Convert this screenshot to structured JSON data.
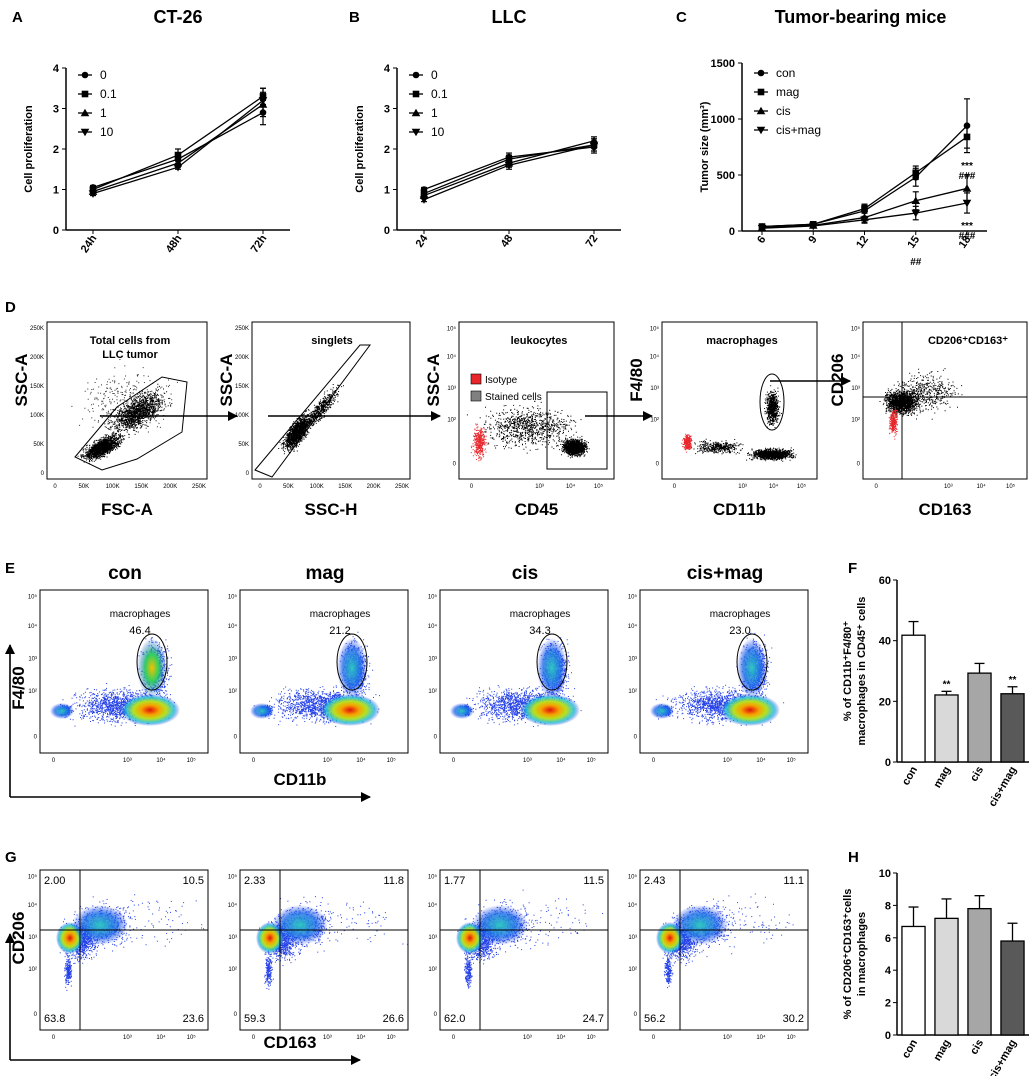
{
  "panels": {
    "A": "A",
    "B": "B",
    "C": "C",
    "D": "D",
    "E": "E",
    "F": "F",
    "G": "G",
    "H": "H"
  },
  "panel_d": {
    "plots": [
      {
        "title": "Total cells from",
        "title2": "LLC tumor",
        "xlabel": "FSC-A",
        "ylabel": "SSC-A"
      },
      {
        "title": "singlets",
        "xlabel": "SSC-H",
        "ylabel": "SSC-A"
      },
      {
        "title": "leukocytes",
        "xlabel": "CD45",
        "ylabel": "SSC-A"
      },
      {
        "title": "macrophages",
        "xlabel": "CD11b",
        "ylabel": "F4/80"
      },
      {
        "title": "CD206⁺CD163⁺",
        "xlabel": "CD163",
        "ylabel": "CD206"
      }
    ],
    "legend": {
      "isotype": "Isotype",
      "stained": "Stained cells",
      "isotype_color": "#e8262c",
      "stained_color": "#808080"
    },
    "linear_ticks": [
      "0",
      "50K",
      "100K",
      "150K",
      "200K",
      "250K"
    ],
    "log_ticks": [
      "0",
      "10³",
      "10⁴",
      "10⁵"
    ]
  },
  "panel_e": {
    "conditions": [
      "con",
      "mag",
      "cis",
      "cis+mag"
    ],
    "gate_label": "macrophages",
    "percents": [
      "46.4",
      "21.2",
      "34.3",
      "23.0"
    ],
    "xlabel": "CD11b",
    "ylabel": "F4/80"
  },
  "panel_g": {
    "quadrants": [
      {
        "ul": "2.00",
        "ur": "10.5",
        "ll": "63.8",
        "lr": "23.6"
      },
      {
        "ul": "2.33",
        "ur": "11.8",
        "ll": "59.3",
        "lr": "26.6"
      },
      {
        "ul": "1.77",
        "ur": "11.5",
        "ll": "62.0",
        "lr": "24.7"
      },
      {
        "ul": "2.43",
        "ur": "11.1",
        "ll": "56.2",
        "lr": "30.2"
      }
    ],
    "xlabel": "CD163",
    "ylabel": "CD206"
  },
  "chart_data": [
    {
      "id": "A",
      "type": "line",
      "title": "CT-26",
      "xlabel": "",
      "ylabel": "Cell proliferation",
      "categories": [
        "24h",
        "48h",
        "72h"
      ],
      "ylim": [
        0,
        4
      ],
      "yticks": [
        "0",
        "1",
        "2",
        "3",
        "4"
      ],
      "series": [
        {
          "name": "0",
          "marker": "circle",
          "values": [
            1.05,
            1.75,
            2.9
          ],
          "err": [
            0.05,
            0.1,
            0.3
          ]
        },
        {
          "name": "0.1",
          "marker": "square",
          "values": [
            1.0,
            1.85,
            3.3
          ],
          "err": [
            0.05,
            0.15,
            0.2
          ]
        },
        {
          "name": "1",
          "marker": "triangle-up",
          "values": [
            0.95,
            1.65,
            3.1
          ],
          "err": [
            0.05,
            0.1,
            0.3
          ]
        },
        {
          "name": "10",
          "marker": "triangle-down",
          "values": [
            0.9,
            1.55,
            3.2
          ],
          "err": [
            0.05,
            0.05,
            0.3
          ]
        }
      ]
    },
    {
      "id": "B",
      "type": "line",
      "title": "LLC",
      "xlabel": "",
      "ylabel": "Cell proliferation",
      "categories": [
        "24",
        "48",
        "72"
      ],
      "ylim": [
        0,
        4
      ],
      "yticks": [
        "0",
        "1",
        "2",
        "3",
        "4"
      ],
      "series": [
        {
          "name": "0",
          "marker": "circle",
          "values": [
            1.0,
            1.8,
            2.05
          ],
          "err": [
            0.05,
            0.1,
            0.15
          ]
        },
        {
          "name": "0.1",
          "marker": "square",
          "values": [
            0.9,
            1.75,
            2.1
          ],
          "err": [
            0.05,
            0.1,
            0.15
          ]
        },
        {
          "name": "1",
          "marker": "triangle-up",
          "values": [
            0.85,
            1.65,
            2.2
          ],
          "err": [
            0.05,
            0.1,
            0.1
          ]
        },
        {
          "name": "10",
          "marker": "triangle-down",
          "values": [
            0.75,
            1.6,
            2.1
          ],
          "err": [
            0.05,
            0.1,
            0.15
          ]
        }
      ]
    },
    {
      "id": "C",
      "type": "line",
      "title": "Tumor-bearing mice",
      "xlabel": "",
      "ylabel": "Tumor size (mm³)",
      "categories": [
        "6",
        "9",
        "12",
        "15",
        "18"
      ],
      "ylim": [
        0,
        1500
      ],
      "yticks": [
        "0",
        "500",
        "1000",
        "1500"
      ],
      "series": [
        {
          "name": "con",
          "marker": "circle",
          "values": [
            40,
            60,
            180,
            480,
            940
          ],
          "err": [
            10,
            15,
            50,
            80,
            240
          ]
        },
        {
          "name": "mag",
          "marker": "square",
          "values": [
            40,
            60,
            200,
            520,
            840
          ],
          "err": [
            10,
            15,
            40,
            60,
            100
          ]
        },
        {
          "name": "cis",
          "marker": "triangle-up",
          "values": [
            30,
            50,
            120,
            270,
            380
          ],
          "err": [
            10,
            15,
            40,
            80,
            120
          ]
        },
        {
          "name": "cis+mag",
          "marker": "triangle-down",
          "values": [
            25,
            45,
            100,
            160,
            250
          ],
          "err": [
            10,
            15,
            30,
            60,
            90
          ]
        }
      ],
      "annotations": {
        "upper": [
          "***",
          "###"
        ],
        "lower": [
          "***",
          "###"
        ],
        "mid": "##"
      }
    },
    {
      "id": "F",
      "type": "bar",
      "ylabel": "% of CD11b⁺F4/80⁺ macrophages in CD45⁺ cells",
      "categories": [
        "con",
        "mag",
        "cis",
        "cis+mag"
      ],
      "values": [
        41.8,
        22.1,
        29.3,
        22.5
      ],
      "err": [
        4.5,
        1.2,
        3.2,
        2.3
      ],
      "fills": [
        "#ffffff",
        "#d9d9d9",
        "#a6a6a6",
        "#595959"
      ],
      "sig": [
        "",
        "**",
        "",
        "**"
      ],
      "ylim": [
        0,
        60
      ],
      "yticks": [
        "0",
        "20",
        "40",
        "60"
      ]
    },
    {
      "id": "H",
      "type": "bar",
      "ylabel": "% of CD206⁺CD163⁺cells in macrophages",
      "categories": [
        "con",
        "mag",
        "cis",
        "cis+mag"
      ],
      "values": [
        6.7,
        7.2,
        7.8,
        5.8
      ],
      "err": [
        1.2,
        1.2,
        0.8,
        1.1
      ],
      "fills": [
        "#ffffff",
        "#d9d9d9",
        "#a6a6a6",
        "#595959"
      ],
      "ylim": [
        0,
        10
      ],
      "yticks": [
        "0",
        "2",
        "4",
        "6",
        "8",
        "10"
      ]
    }
  ]
}
